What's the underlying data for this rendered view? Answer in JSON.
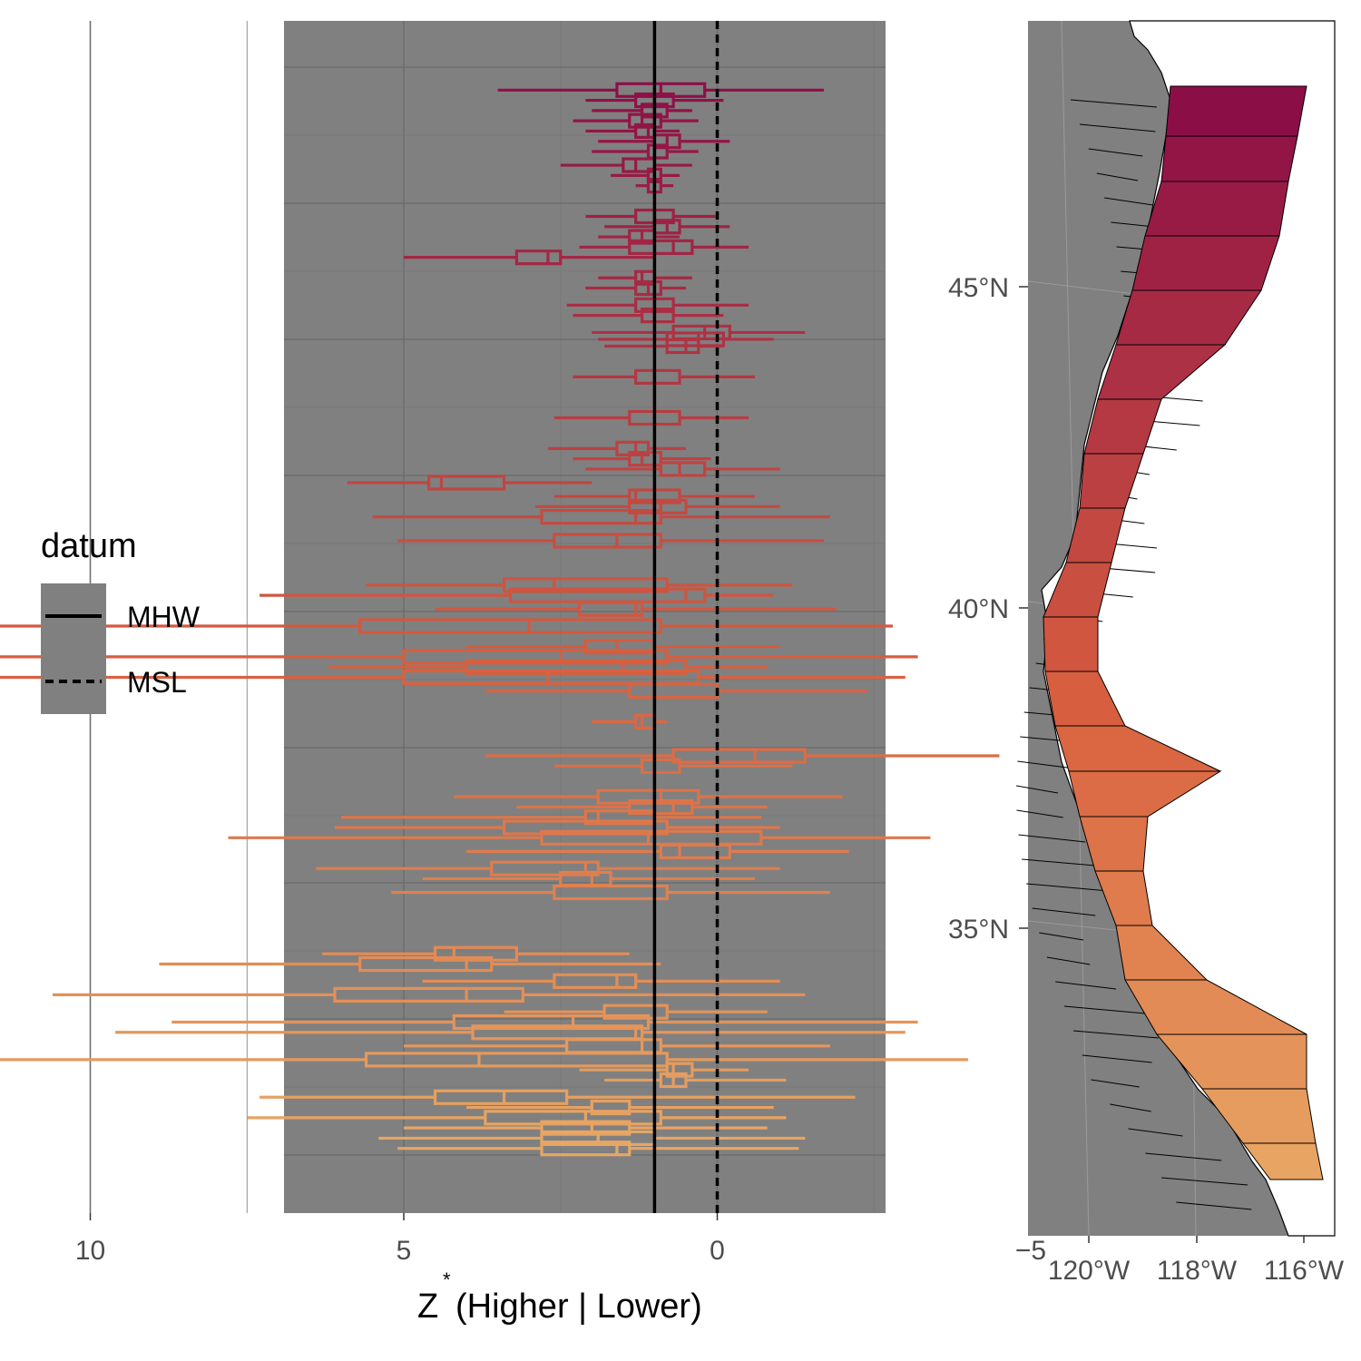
{
  "chart_data": [
    {
      "type": "boxplot",
      "xlabel": "Z",
      "xlabel_superscript": "*",
      "xlabel_suffix": "(Higher | Lower)",
      "xlim": [
        13.8,
        -5.3
      ],
      "x_reversed": true,
      "x_ticks": [
        10,
        5,
        0,
        -5
      ],
      "x_tick_labels": [
        "10",
        "5",
        "0",
        "−5"
      ],
      "ylabel": "",
      "grid": true,
      "panel_background": "#808080",
      "reference_lines": [
        {
          "datum": "MHW",
          "x": 1.0,
          "style": "solid"
        },
        {
          "datum": "MSL",
          "x": 0.0,
          "style": "dashed"
        }
      ],
      "boxes": [
        {
          "lat": 48.2,
          "whisker_low": -1.7,
          "q1": 0.2,
          "median": 0.9,
          "q3": 1.6,
          "whisker_high": 3.5
        },
        {
          "lat": 48.05,
          "whisker_low": -0.1,
          "q1": 0.7,
          "median": 1.0,
          "q3": 1.3,
          "whisker_high": 2.1
        },
        {
          "lat": 47.9,
          "whisker_low": 0.4,
          "q1": 0.8,
          "median": 1.0,
          "q3": 1.2,
          "whisker_high": 2.0
        },
        {
          "lat": 47.75,
          "whisker_low": 0.3,
          "q1": 0.9,
          "median": 1.2,
          "q3": 1.4,
          "whisker_high": 2.3
        },
        {
          "lat": 47.6,
          "whisker_low": 0.6,
          "q1": 1.0,
          "median": 1.1,
          "q3": 1.3,
          "whisker_high": 2.1
        },
        {
          "lat": 47.45,
          "whisker_low": -0.2,
          "q1": 0.6,
          "median": 0.8,
          "q3": 1.0,
          "whisker_high": 1.9
        },
        {
          "lat": 47.3,
          "whisker_low": 0.3,
          "q1": 0.8,
          "median": 1.0,
          "q3": 1.1,
          "whisker_high": 2.0
        },
        {
          "lat": 47.1,
          "whisker_low": 0.4,
          "q1": 1.0,
          "median": 1.3,
          "q3": 1.5,
          "whisker_high": 2.5
        },
        {
          "lat": 46.95,
          "whisker_low": 0.6,
          "q1": 0.9,
          "median": 1.0,
          "q3": 1.1,
          "whisker_high": 1.7
        },
        {
          "lat": 46.8,
          "whisker_low": 0.7,
          "q1": 0.9,
          "median": 1.0,
          "q3": 1.1,
          "whisker_high": 1.3
        },
        {
          "lat": 46.35,
          "whisker_low": 0.0,
          "q1": 0.7,
          "median": 1.0,
          "q3": 1.3,
          "whisker_high": 2.1
        },
        {
          "lat": 46.2,
          "whisker_low": -0.2,
          "q1": 0.6,
          "median": 0.8,
          "q3": 1.0,
          "whisker_high": 1.8
        },
        {
          "lat": 46.05,
          "whisker_low": 0.6,
          "q1": 1.0,
          "median": 1.2,
          "q3": 1.4,
          "whisker_high": 1.9
        },
        {
          "lat": 45.9,
          "whisker_low": -0.5,
          "q1": 0.4,
          "median": 0.7,
          "q3": 1.4,
          "whisker_high": 2.2
        },
        {
          "lat": 45.75,
          "whisker_low": 1.0,
          "q1": 2.5,
          "median": 2.7,
          "q3": 3.2,
          "whisker_high": 5.0
        },
        {
          "lat": 45.45,
          "whisker_low": 0.4,
          "q1": 1.0,
          "median": 1.2,
          "q3": 1.3,
          "whisker_high": 1.9
        },
        {
          "lat": 45.3,
          "whisker_low": 0.5,
          "q1": 0.9,
          "median": 1.1,
          "q3": 1.3,
          "whisker_high": 2.1
        },
        {
          "lat": 45.05,
          "whisker_low": -0.5,
          "q1": 0.7,
          "median": 1.0,
          "q3": 1.3,
          "whisker_high": 2.4
        },
        {
          "lat": 44.9,
          "whisker_low": -0.1,
          "q1": 0.7,
          "median": 1.0,
          "q3": 1.2,
          "whisker_high": 2.3
        },
        {
          "lat": 44.65,
          "whisker_low": -1.4,
          "q1": -0.2,
          "median": 0.2,
          "q3": 0.7,
          "whisker_high": 2.0
        },
        {
          "lat": 44.55,
          "whisker_low": -0.9,
          "q1": -0.1,
          "median": 0.3,
          "q3": 0.8,
          "whisker_high": 1.9
        },
        {
          "lat": 44.45,
          "whisker_low": -0.1,
          "q1": 0.3,
          "median": 0.5,
          "q3": 0.8,
          "whisker_high": 1.8
        },
        {
          "lat": 44.0,
          "whisker_low": -0.6,
          "q1": 0.6,
          "median": 1.0,
          "q3": 1.3,
          "whisker_high": 2.3
        },
        {
          "lat": 43.4,
          "whisker_low": -0.5,
          "q1": 0.6,
          "median": 1.0,
          "q3": 1.4,
          "whisker_high": 2.6
        },
        {
          "lat": 42.95,
          "whisker_low": 0.5,
          "q1": 1.1,
          "median": 1.3,
          "q3": 1.6,
          "whisker_high": 2.7
        },
        {
          "lat": 42.8,
          "whisker_low": 0.1,
          "q1": 0.9,
          "median": 1.2,
          "q3": 1.4,
          "whisker_high": 2.3
        },
        {
          "lat": 42.65,
          "whisker_low": -1.0,
          "q1": 0.2,
          "median": 0.6,
          "q3": 0.9,
          "whisker_high": 2.1
        },
        {
          "lat": 42.45,
          "whisker_low": 2.0,
          "q1": 3.4,
          "median": 4.4,
          "q3": 4.6,
          "whisker_high": 5.9
        },
        {
          "lat": 42.25,
          "whisker_low": -0.6,
          "q1": 0.6,
          "median": 1.3,
          "q3": 1.4,
          "whisker_high": 2.6
        },
        {
          "lat": 42.1,
          "whisker_low": -1.0,
          "q1": 0.5,
          "median": 0.9,
          "q3": 1.4,
          "whisker_high": 2.9
        },
        {
          "lat": 41.95,
          "whisker_low": -1.8,
          "q1": 0.9,
          "median": 1.3,
          "q3": 2.8,
          "whisker_high": 5.5
        },
        {
          "lat": 41.6,
          "whisker_low": -1.7,
          "q1": 0.9,
          "median": 1.6,
          "q3": 2.6,
          "whisker_high": 5.1
        },
        {
          "lat": 40.95,
          "whisker_low": -1.2,
          "q1": 0.8,
          "median": 2.6,
          "q3": 3.4,
          "whisker_high": 5.6
        },
        {
          "lat": 40.8,
          "whisker_low": -0.9,
          "q1": 0.2,
          "median": 0.5,
          "q3": 3.3,
          "whisker_high": 7.3
        },
        {
          "lat": 40.6,
          "whisker_low": -1.9,
          "q1": 1.2,
          "median": 1.3,
          "q3": 2.2,
          "whisker_high": 4.5
        },
        {
          "lat": 40.35,
          "whisker_low": -2.8,
          "q1": 0.9,
          "median": 3.0,
          "q3": 5.7,
          "whisker_high": 13.0
        },
        {
          "lat": 40.05,
          "whisker_low": -1.0,
          "q1": 1.0,
          "median": 1.6,
          "q3": 2.1,
          "whisker_high": 4.0
        },
        {
          "lat": 39.9,
          "whisker_low": -3.2,
          "q1": 0.8,
          "median": 2.5,
          "q3": 5.0,
          "whisker_high": 12.2
        },
        {
          "lat": 39.75,
          "whisker_low": -0.8,
          "q1": 0.5,
          "median": 1.5,
          "q3": 4.0,
          "whisker_high": 6.2
        },
        {
          "lat": 39.6,
          "whisker_low": -3.0,
          "q1": 0.3,
          "median": 2.7,
          "q3": 5.0,
          "whisker_high": 13.0
        },
        {
          "lat": 39.4,
          "whisker_low": -2.4,
          "q1": 0.0,
          "median": 1.0,
          "q3": 1.4,
          "whisker_high": 3.7
        },
        {
          "lat": 38.95,
          "whisker_low": 0.8,
          "q1": 1.0,
          "median": 1.2,
          "q3": 1.3,
          "whisker_high": 2.0
        },
        {
          "lat": 38.45,
          "whisker_low": -4.5,
          "q1": -1.4,
          "median": -0.6,
          "q3": 0.7,
          "whisker_high": 3.7
        },
        {
          "lat": 38.3,
          "whisker_low": -1.2,
          "q1": 0.6,
          "median": 1.0,
          "q3": 1.2,
          "whisker_high": 2.6
        },
        {
          "lat": 37.85,
          "whisker_low": -2.0,
          "q1": 0.3,
          "median": 0.9,
          "q3": 1.9,
          "whisker_high": 4.2
        },
        {
          "lat": 37.7,
          "whisker_low": -0.8,
          "q1": 0.4,
          "median": 0.7,
          "q3": 1.4,
          "whisker_high": 3.2
        },
        {
          "lat": 37.55,
          "whisker_low": -0.7,
          "q1": 1.0,
          "median": 1.9,
          "q3": 2.1,
          "whisker_high": 6.0
        },
        {
          "lat": 37.4,
          "whisker_low": -1.0,
          "q1": 0.8,
          "median": 1.0,
          "q3": 3.4,
          "whisker_high": 6.1
        },
        {
          "lat": 37.25,
          "whisker_low": -3.4,
          "q1": -0.7,
          "median": 1.1,
          "q3": 2.8,
          "whisker_high": 7.8
        },
        {
          "lat": 37.05,
          "whisker_low": -2.1,
          "q1": -0.2,
          "median": 0.6,
          "q3": 0.9,
          "whisker_high": 4.0
        },
        {
          "lat": 36.8,
          "whisker_low": -1.0,
          "q1": 1.9,
          "median": 2.1,
          "q3": 3.6,
          "whisker_high": 6.4
        },
        {
          "lat": 36.65,
          "whisker_low": -0.6,
          "q1": 1.7,
          "median": 2.0,
          "q3": 2.5,
          "whisker_high": 4.7
        },
        {
          "lat": 36.45,
          "whisker_low": -1.8,
          "q1": 0.8,
          "median": 1.0,
          "q3": 2.6,
          "whisker_high": 5.2
        },
        {
          "lat": 35.55,
          "whisker_low": 1.4,
          "q1": 3.2,
          "median": 4.2,
          "q3": 4.5,
          "whisker_high": 6.3
        },
        {
          "lat": 35.4,
          "whisker_low": 0.9,
          "q1": 3.6,
          "median": 4.0,
          "q3": 5.7,
          "whisker_high": 8.9
        },
        {
          "lat": 35.15,
          "whisker_low": -1.0,
          "q1": 1.3,
          "median": 1.6,
          "q3": 2.6,
          "whisker_high": 4.7
        },
        {
          "lat": 34.95,
          "whisker_low": -1.4,
          "q1": 3.1,
          "median": 4.0,
          "q3": 6.1,
          "whisker_high": 10.6
        },
        {
          "lat": 34.7,
          "whisker_low": -0.8,
          "q1": 0.8,
          "median": 1.0,
          "q3": 1.8,
          "whisker_high": 3.4
        },
        {
          "lat": 34.55,
          "whisker_low": -3.2,
          "q1": 1.1,
          "median": 2.3,
          "q3": 4.2,
          "whisker_high": 8.7
        },
        {
          "lat": 34.4,
          "whisker_low": -3.0,
          "q1": 1.2,
          "median": 1.3,
          "q3": 3.9,
          "whisker_high": 9.6
        },
        {
          "lat": 34.2,
          "whisker_low": -1.8,
          "q1": 0.9,
          "median": 1.2,
          "q3": 2.4,
          "whisker_high": 5.0
        },
        {
          "lat": 34.0,
          "whisker_low": -4.0,
          "q1": 0.8,
          "median": 3.8,
          "q3": 5.6,
          "whisker_high": 12.6
        },
        {
          "lat": 33.85,
          "whisker_low": -0.5,
          "q1": 0.4,
          "median": 0.7,
          "q3": 0.8,
          "whisker_high": 2.2
        },
        {
          "lat": 33.7,
          "whisker_low": -1.1,
          "q1": 0.5,
          "median": 0.7,
          "q3": 0.9,
          "whisker_high": 1.8
        },
        {
          "lat": 33.45,
          "whisker_low": -2.2,
          "q1": 2.4,
          "median": 3.4,
          "q3": 4.5,
          "whisker_high": 7.3
        },
        {
          "lat": 33.3,
          "whisker_low": -0.9,
          "q1": 1.4,
          "median": 2.0,
          "q3": 2.0,
          "whisker_high": 4.0
        },
        {
          "lat": 33.15,
          "whisker_low": -1.1,
          "q1": 0.9,
          "median": 2.1,
          "q3": 3.7,
          "whisker_high": 7.5
        },
        {
          "lat": 33.0,
          "whisker_low": -0.8,
          "q1": 1.4,
          "median": 2.0,
          "q3": 2.8,
          "whisker_high": 5.0
        },
        {
          "lat": 32.85,
          "whisker_low": -1.4,
          "q1": 1.0,
          "median": 1.9,
          "q3": 2.8,
          "whisker_high": 5.4
        },
        {
          "lat": 32.7,
          "whisker_low": -1.3,
          "q1": 1.4,
          "median": 1.6,
          "q3": 2.8,
          "whisker_high": 5.1
        }
      ],
      "lat_range": [
        31.9,
        49.5
      ],
      "color_scale": {
        "high_lat": "#8c0e47",
        "mid_lat": "#d9603f",
        "low_lat": "#e8a965"
      }
    },
    {
      "type": "map",
      "x_tick_labels": [
        "120°W",
        "118°W",
        "116°W"
      ],
      "y_tick_labels": [
        "45°N",
        "40°N",
        "35°N"
      ],
      "panel_background": "#808080",
      "land_color": "#ffffff"
    }
  ],
  "legend": {
    "title": "datum",
    "items": [
      {
        "label": "MHW",
        "style": "solid"
      },
      {
        "label": "MSL",
        "style": "dashed"
      }
    ]
  }
}
